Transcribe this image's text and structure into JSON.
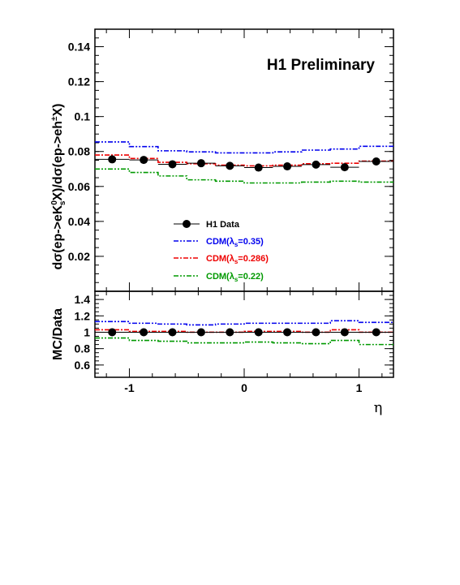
{
  "chart_data": [
    {
      "type": "line",
      "panel": "main",
      "badge": "H1 Preliminary",
      "ylabel_parts": {
        "a": "dσ(ep->eK",
        "sup": "0",
        "sub": "s",
        "b": "X)/dσ(ep->eh",
        "sup2": "±",
        "c": "X)"
      },
      "ylim": [
        0,
        0.15
      ],
      "yticks": [
        0.02,
        0.04,
        0.06,
        0.08,
        0.1,
        0.12,
        0.14
      ],
      "ytick_labels": [
        "0.02",
        "0.04",
        "0.06",
        "0.08",
        "0.1",
        "0.12",
        "0.14"
      ],
      "xlim": [
        -1.3,
        1.3
      ],
      "bin_edges": [
        -1.3,
        -1.0,
        -0.75,
        -0.5,
        -0.25,
        0.0,
        0.25,
        0.5,
        0.75,
        1.0,
        1.3
      ],
      "bin_centers": [
        -1.15,
        -0.875,
        -0.625,
        -0.375,
        -0.125,
        0.125,
        0.375,
        0.625,
        0.875,
        1.15
      ],
      "data": {
        "name": "H1 Data",
        "values": [
          0.0755,
          0.0752,
          0.0727,
          0.0733,
          0.0718,
          0.0708,
          0.0715,
          0.0725,
          0.071,
          0.0743
        ],
        "errors": [
          0.0012,
          0.001,
          0.001,
          0.001,
          0.001,
          0.001,
          0.001,
          0.001,
          0.001,
          0.0012
        ]
      },
      "series": [
        {
          "name_prefix": "CDM(λ",
          "name_sub": "s",
          "name_suffix": "=0.35)",
          "color": "#0000ee",
          "values": [
            0.0855,
            0.0828,
            0.0804,
            0.0798,
            0.0792,
            0.0792,
            0.0798,
            0.0808,
            0.0814,
            0.083
          ]
        },
        {
          "name_prefix": "CDM(λ",
          "name_sub": "s",
          "name_suffix": "=0.286)",
          "color": "#ee0000",
          "values": [
            0.078,
            0.076,
            0.0738,
            0.073,
            0.0722,
            0.0718,
            0.0722,
            0.073,
            0.0733,
            0.0745
          ]
        },
        {
          "name_prefix": "CDM(λ",
          "name_sub": "s",
          "name_suffix": "=0.22)",
          "color": "#009900",
          "values": [
            0.07,
            0.068,
            0.066,
            0.0638,
            0.063,
            0.062,
            0.062,
            0.0625,
            0.063,
            0.0625
          ]
        }
      ],
      "legend_placement": "center-bottom"
    },
    {
      "type": "line",
      "panel": "ratio",
      "ylabel": "MC/Data",
      "xlabel": "η",
      "ylim": [
        0.45,
        1.5
      ],
      "yticks": [
        0.6,
        0.8,
        1.0,
        1.2,
        1.4
      ],
      "ytick_labels": [
        "0.6",
        "0.8",
        "1",
        "1.2",
        "1.4"
      ],
      "xticks": [
        -1,
        0,
        1
      ],
      "xtick_labels": [
        "-1",
        "0",
        "1"
      ],
      "xlim": [
        -1.3,
        1.3
      ],
      "bin_edges": [
        -1.3,
        -1.0,
        -0.75,
        -0.5,
        -0.25,
        0.0,
        0.25,
        0.5,
        0.75,
        1.0,
        1.3
      ],
      "bin_centers": [
        -1.15,
        -0.875,
        -0.625,
        -0.375,
        -0.125,
        0.125,
        0.375,
        0.625,
        0.875,
        1.15
      ],
      "data": {
        "values": [
          1,
          1,
          1,
          1,
          1,
          1,
          1,
          1,
          1,
          1
        ],
        "errors": [
          0.02,
          0.02,
          0.02,
          0.02,
          0.02,
          0.02,
          0.02,
          0.02,
          0.02,
          0.02
        ]
      },
      "series": [
        {
          "color": "#0000ee",
          "values": [
            1.13,
            1.11,
            1.1,
            1.09,
            1.1,
            1.11,
            1.11,
            1.11,
            1.14,
            1.12
          ]
        },
        {
          "color": "#ee0000",
          "values": [
            1.03,
            1.01,
            1.01,
            1.0,
            1.0,
            1.01,
            1.01,
            1.0,
            1.03,
            1.0
          ]
        },
        {
          "color": "#009900",
          "values": [
            0.93,
            0.9,
            0.89,
            0.87,
            0.87,
            0.88,
            0.87,
            0.86,
            0.9,
            0.85
          ]
        }
      ]
    }
  ]
}
